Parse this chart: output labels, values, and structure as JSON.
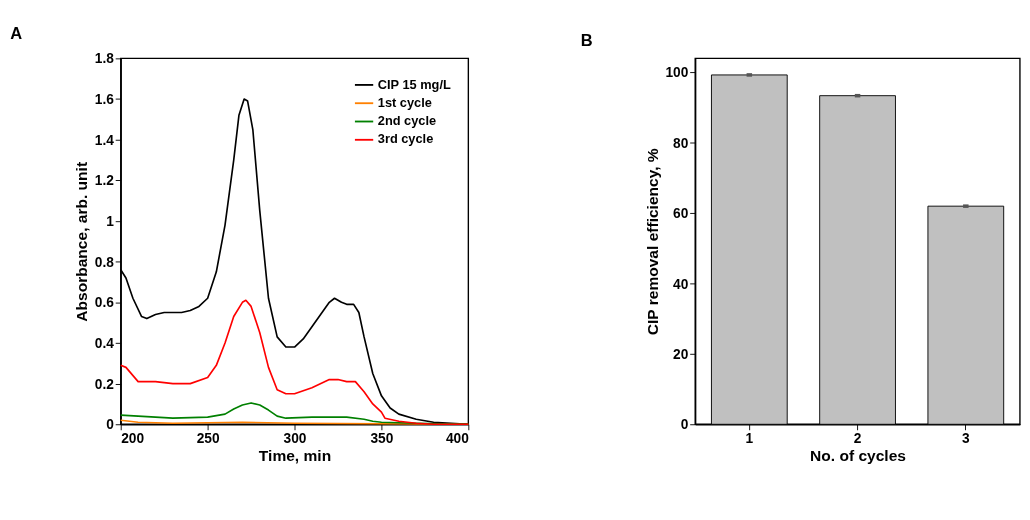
{
  "chart_data": [
    {
      "type": "line",
      "title": "A",
      "xlabel": "Time, min",
      "ylabel": "Absorbance, arb. unit",
      "xlim": [
        200,
        400
      ],
      "xticks": [
        200,
        250,
        300,
        350,
        400
      ],
      "ylim": [
        0,
        1.8
      ],
      "yticks": [
        0,
        0.2,
        0.4,
        0.6,
        0.8,
        1,
        1.2,
        1.4,
        1.6,
        1.8
      ],
      "grid": false,
      "legend": "top right",
      "marker": "none",
      "line_style": "solid",
      "series": [
        {
          "name": "CIP 15 mg/L",
          "color": "#000000",
          "x": [
            200,
            203,
            207,
            212,
            215,
            220,
            225,
            235,
            240,
            245,
            250,
            255,
            260,
            265,
            268,
            271,
            273,
            276,
            280,
            285,
            290,
            295,
            300,
            305,
            310,
            315,
            320,
            323,
            327,
            330,
            334,
            337,
            340,
            345,
            350,
            355,
            360,
            370,
            380,
            390,
            400
          ],
          "values": [
            0.76,
            0.72,
            0.62,
            0.53,
            0.52,
            0.54,
            0.55,
            0.55,
            0.56,
            0.58,
            0.62,
            0.75,
            0.98,
            1.3,
            1.52,
            1.6,
            1.59,
            1.45,
            1.05,
            0.62,
            0.43,
            0.38,
            0.38,
            0.42,
            0.48,
            0.54,
            0.6,
            0.62,
            0.6,
            0.59,
            0.59,
            0.55,
            0.43,
            0.25,
            0.14,
            0.08,
            0.05,
            0.025,
            0.01,
            0.005,
            0
          ]
        },
        {
          "name": "1st cycle",
          "color": "#ff8000",
          "x": [
            200,
            210,
            230,
            270,
            300,
            400
          ],
          "values": [
            0.02,
            0.01,
            0.005,
            0.01,
            0.005,
            0
          ]
        },
        {
          "name": "2nd cycle",
          "color": "#008000",
          "x": [
            200,
            210,
            230,
            250,
            260,
            265,
            270,
            275,
            280,
            285,
            290,
            295,
            310,
            330,
            340,
            345,
            350,
            370,
            400
          ],
          "values": [
            0.045,
            0.04,
            0.03,
            0.035,
            0.05,
            0.075,
            0.095,
            0.105,
            0.095,
            0.07,
            0.04,
            0.03,
            0.035,
            0.035,
            0.025,
            0.015,
            0.01,
            0.005,
            0
          ]
        },
        {
          "name": "3rd cycle",
          "color": "#ff0000",
          "x": [
            200,
            203,
            210,
            220,
            230,
            240,
            250,
            255,
            260,
            265,
            270,
            272,
            275,
            280,
            285,
            290,
            295,
            300,
            310,
            320,
            325,
            330,
            335,
            340,
            345,
            350,
            352,
            360,
            370,
            380,
            400
          ],
          "values": [
            0.29,
            0.28,
            0.21,
            0.21,
            0.2,
            0.2,
            0.23,
            0.29,
            0.4,
            0.53,
            0.6,
            0.61,
            0.58,
            0.45,
            0.28,
            0.17,
            0.15,
            0.15,
            0.18,
            0.22,
            0.22,
            0.21,
            0.21,
            0.16,
            0.1,
            0.06,
            0.03,
            0.015,
            0.005,
            0,
            0
          ]
        }
      ]
    },
    {
      "type": "bar",
      "title": "B",
      "xlabel": "No. of cycles",
      "ylabel": "CIP removal efficiency, %",
      "categories": [
        "1",
        "2",
        "3"
      ],
      "ylim": [
        0,
        104
      ],
      "yticks": [
        0,
        20,
        40,
        60,
        80,
        100
      ],
      "grid": false,
      "values": [
        99.3,
        93.4,
        62.0
      ],
      "color": "#c0c0c0",
      "errors": [
        0.5,
        0.5,
        0.5
      ]
    }
  ]
}
